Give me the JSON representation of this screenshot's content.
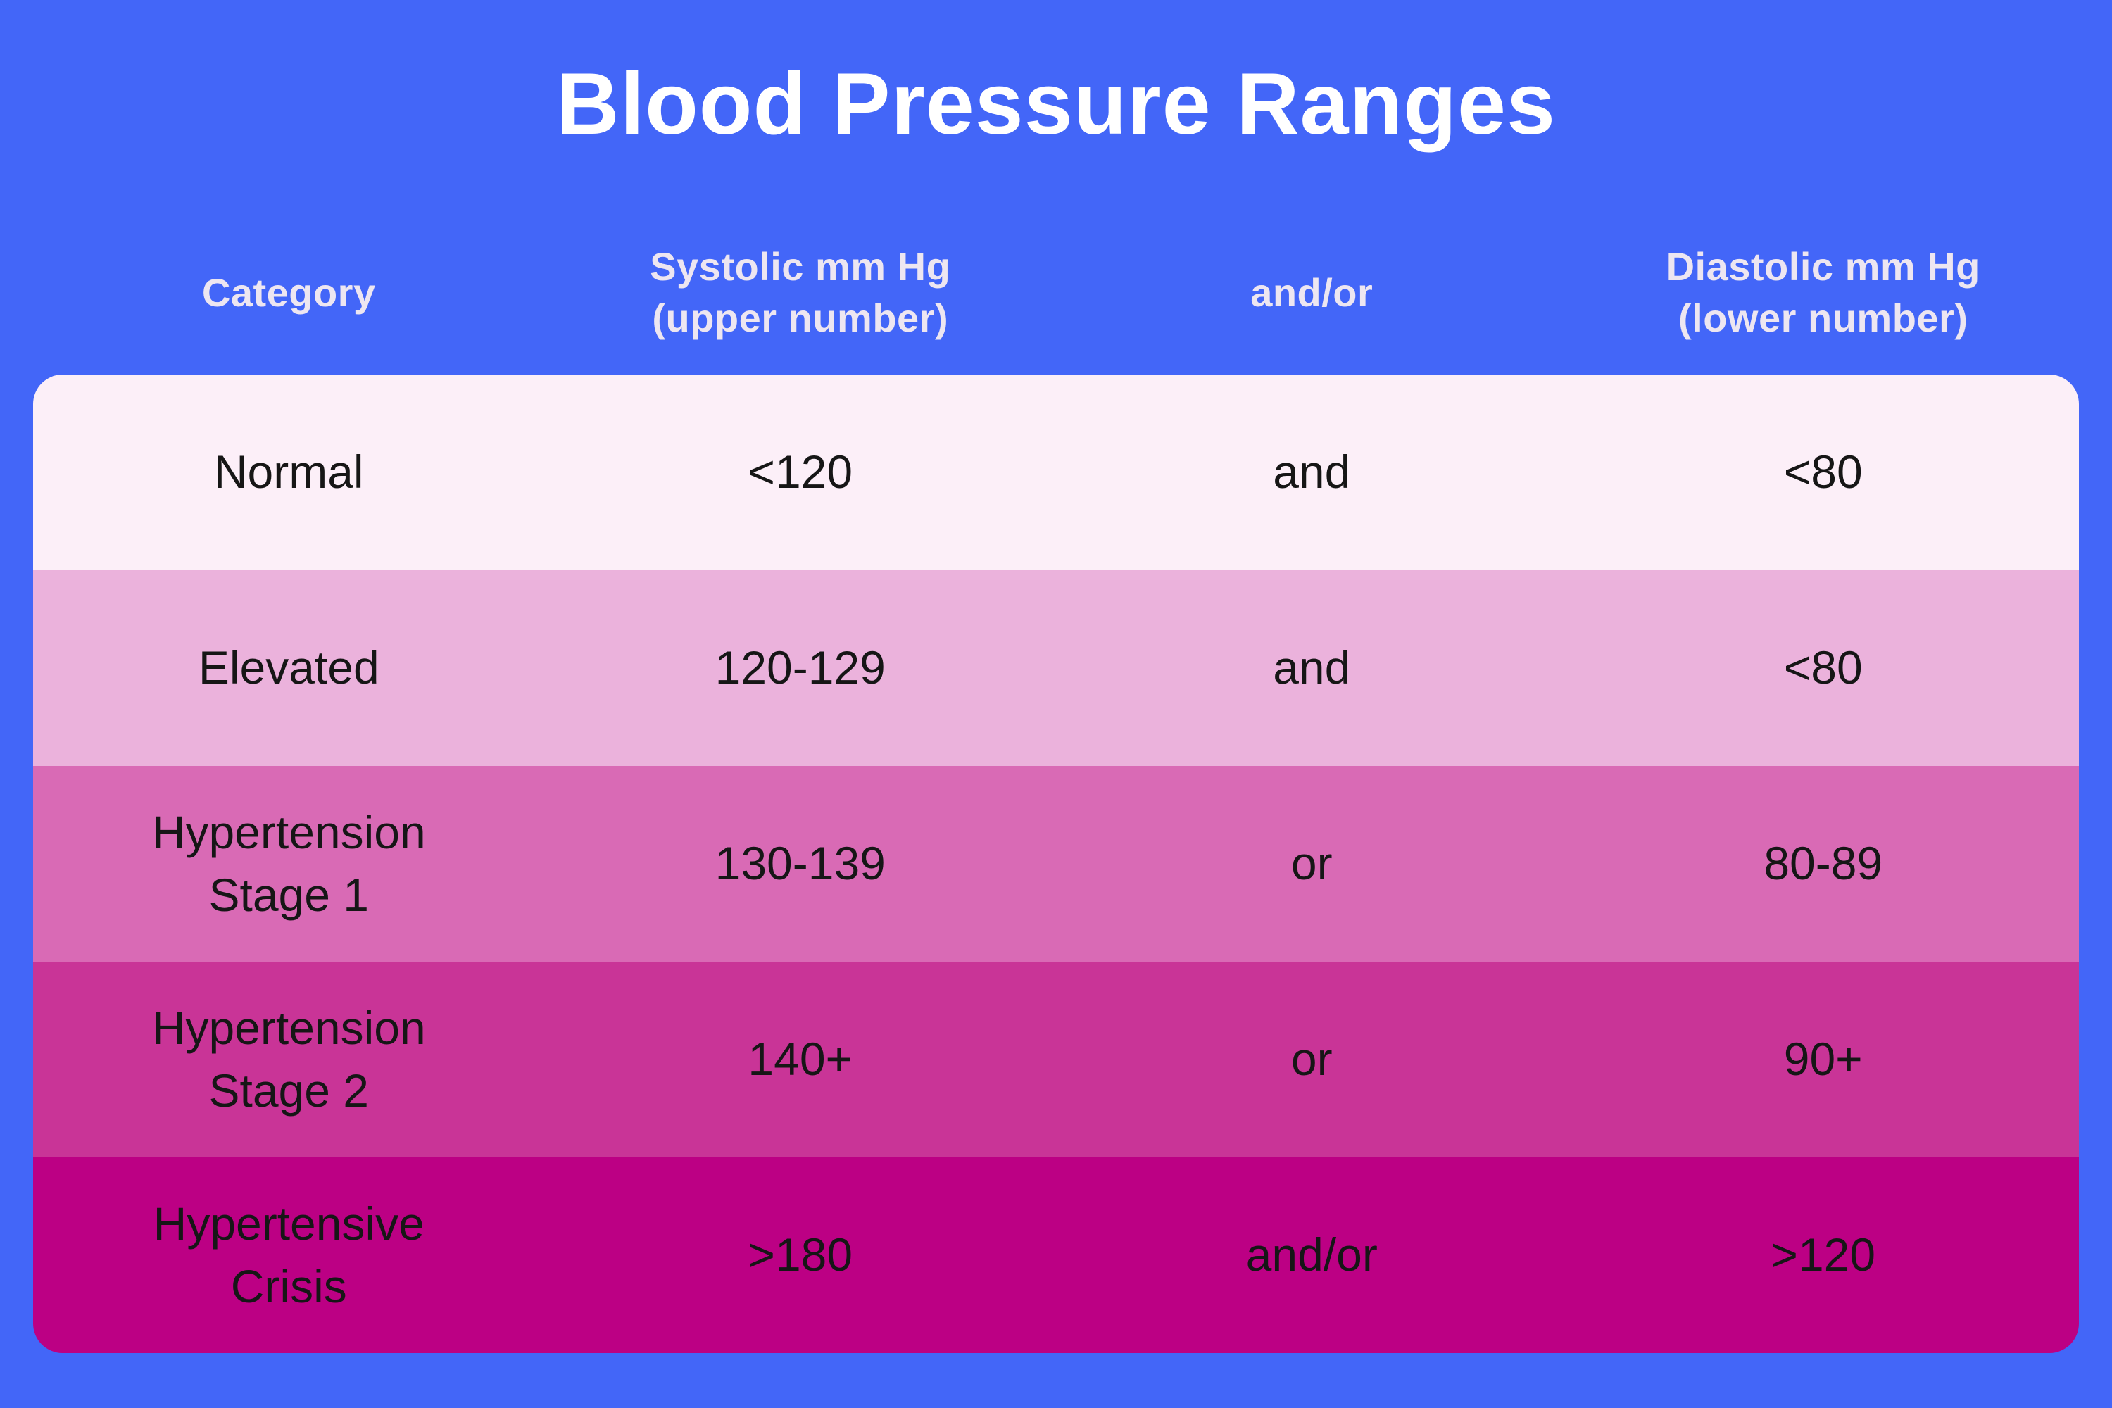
{
  "title": "Blood Pressure Ranges",
  "colors": {
    "background": "#4366F8",
    "title_text": "#FFFFFF",
    "header_text": "#EDE6F1",
    "body_text": "#161616"
  },
  "table": {
    "headers": [
      {
        "label": "Category"
      },
      {
        "label": "Systolic mm Hg\n(upper number)"
      },
      {
        "label": "and/or"
      },
      {
        "label": "Diastolic mm Hg\n(lower number)"
      }
    ],
    "rows": [
      {
        "category": "Normal",
        "systolic": "<120",
        "connector": "and",
        "diastolic": "<80",
        "bg": "#FCEFF8"
      },
      {
        "category": "Elevated",
        "systolic": "120-129",
        "connector": "and",
        "diastolic": "<80",
        "bg": "#EBB2DC"
      },
      {
        "category": "Hypertension\nStage 1",
        "systolic": "130-139",
        "connector": "or",
        "diastolic": "80-89",
        "bg": "#D96AB5"
      },
      {
        "category": "Hypertension\nStage 2",
        "systolic": "140+",
        "connector": "or",
        "diastolic": "90+",
        "bg": "#C93497"
      },
      {
        "category": "Hypertensive\nCrisis",
        "systolic": ">180",
        "connector": "and/or",
        "diastolic": ">120",
        "bg": "#BC0084"
      }
    ]
  },
  "chart_data": {
    "type": "table",
    "title": "Blood Pressure Ranges",
    "columns": [
      "Category",
      "Systolic mm Hg (upper number)",
      "and/or",
      "Diastolic mm Hg (lower number)"
    ],
    "rows": [
      [
        "Normal",
        "<120",
        "and",
        "<80"
      ],
      [
        "Elevated",
        "120-129",
        "and",
        "<80"
      ],
      [
        "Hypertension Stage 1",
        "130-139",
        "or",
        "80-89"
      ],
      [
        "Hypertension Stage 2",
        "140+",
        "or",
        "90+"
      ],
      [
        "Hypertensive Crisis",
        ">180",
        "and/or",
        ">120"
      ]
    ],
    "row_colors": [
      "#FCEFF8",
      "#EBB2DC",
      "#D96AB5",
      "#C93497",
      "#BC0084"
    ],
    "layout": {
      "header_on_background": true,
      "background_color": "#4366F8",
      "rounded_table_corners": true
    }
  }
}
